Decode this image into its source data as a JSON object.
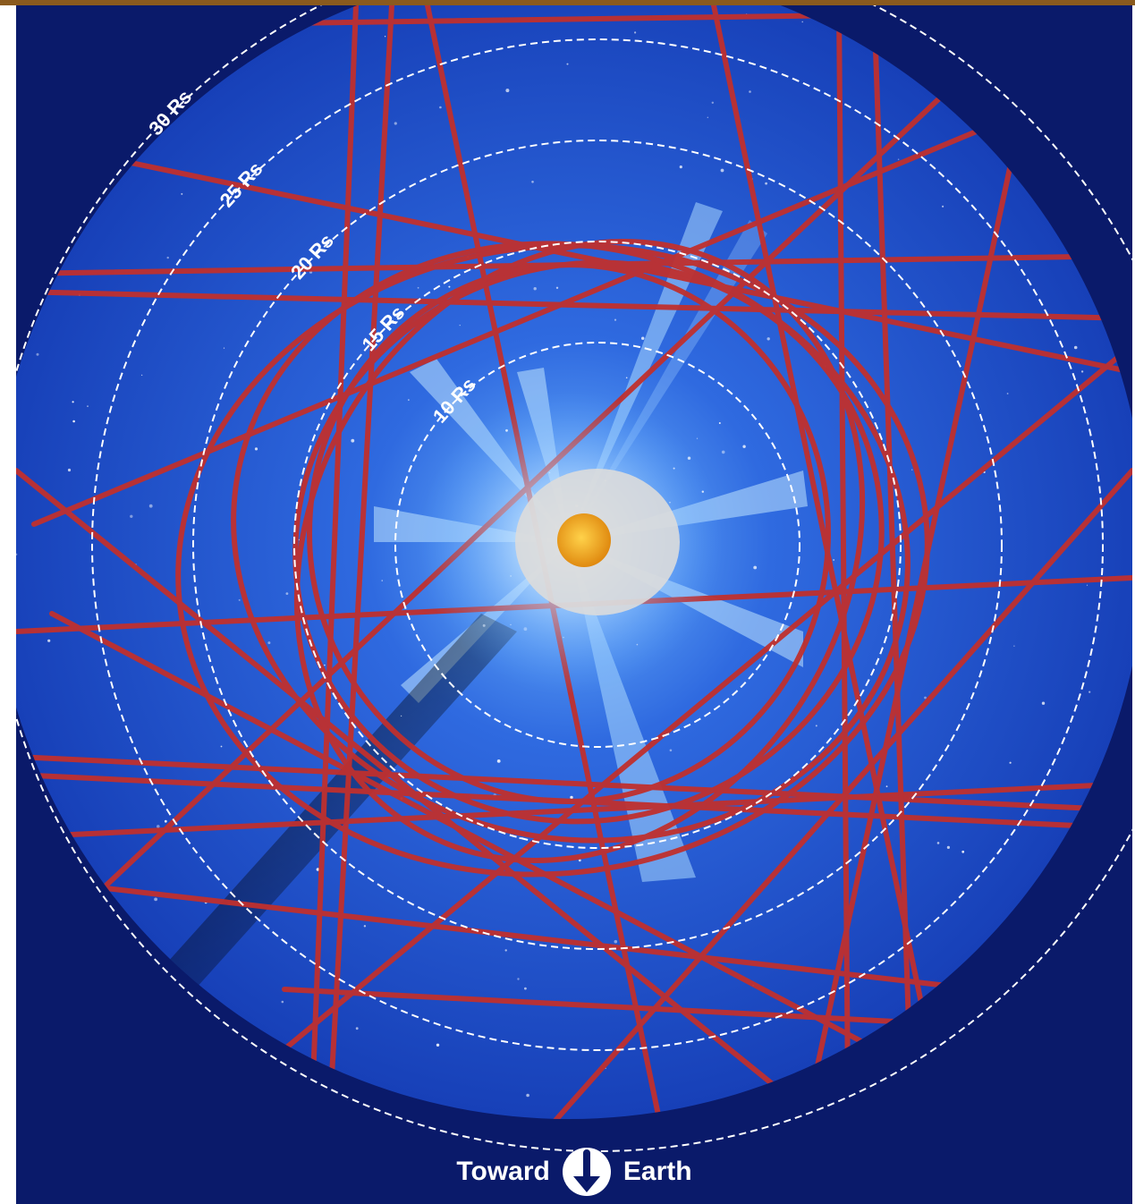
{
  "rings": [
    {
      "label": "10 Rs",
      "radius_rs": 10
    },
    {
      "label": "15 Rs",
      "radius_rs": 15
    },
    {
      "label": "20 Rs",
      "radius_rs": 20
    },
    {
      "label": "25 Rs",
      "radius_rs": 25
    },
    {
      "label": "30 Rs",
      "radius_rs": 30
    }
  ],
  "footer": {
    "left_text": "Toward",
    "right_text": "Earth",
    "icon": "down-arrow-icon"
  },
  "colors": {
    "background": "#0a1a6a",
    "field": "#1f4ecf",
    "orbit_tracks": "#c0302e",
    "rings": "#ffffff",
    "sun": "#f2a623",
    "top_bar": "#8a5a1e"
  }
}
